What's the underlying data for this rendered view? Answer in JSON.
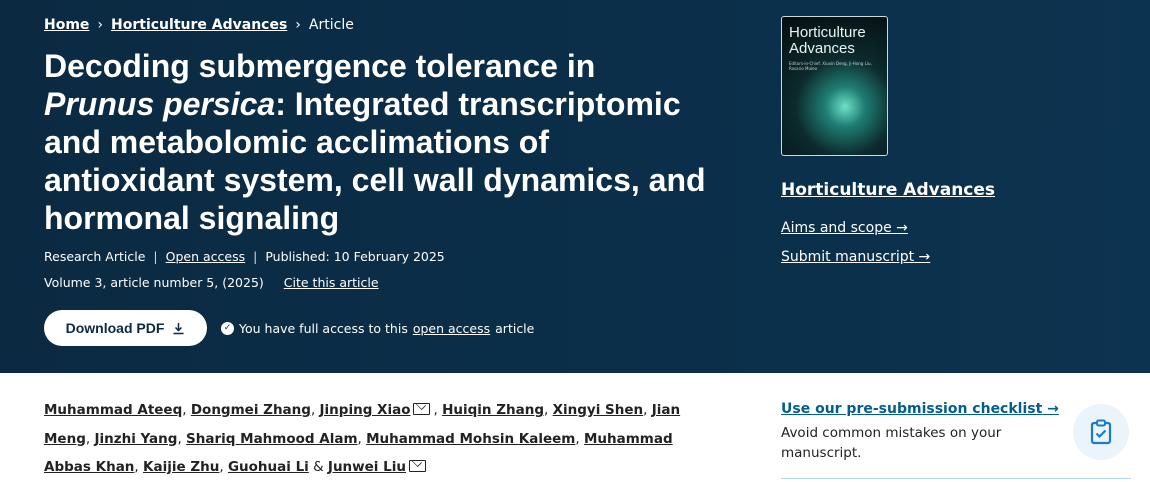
{
  "breadcrumb": [
    {
      "label": "Home"
    },
    {
      "label": "Horticulture Advances"
    },
    {
      "label": "Article"
    }
  ],
  "title": {
    "part1": "Decoding submergence tolerance in ",
    "italic": "Prunus persica",
    "part2": ": Integrated transcriptomic and metabolomic acclimations of antioxidant system, cell wall dynamics, and hormonal signaling"
  },
  "meta": {
    "type": "Research Article",
    "open_access": "Open access",
    "published": "Published: 10 February 2025",
    "volume": "Volume 3, article number 5, (2025)",
    "cite": "Cite this article"
  },
  "download": {
    "label": "Download PDF",
    "icon": "download-icon"
  },
  "access": {
    "prefix": "You have full access to this",
    "link": "open access",
    "suffix": "article"
  },
  "journal": {
    "cover_title": "Horticulture Advances",
    "cover_editors": "Editors-in-Chief: Xiuxin Deng, Ji-Hong Liu, Rosario Muleo",
    "name": "Horticulture Advances",
    "aims": "Aims and scope",
    "submit": "Submit manuscript"
  },
  "authors": [
    "Muhammad Ateeq",
    "Dongmei Zhang",
    "Jinping Xiao",
    "Huiqin Zhang",
    "Xingyi Shen",
    "Jian Meng",
    "Jinzhi Yang",
    "Shariq Mahmood Alam",
    "Muhammad Mohsin Kaleem",
    "Muhammad Abbas Khan",
    "Kaijie Zhu",
    "Guohuai Li",
    "Junwei Liu"
  ],
  "checklist": {
    "link": "Use our pre-submission checklist",
    "desc": "Avoid common mistakes on your manuscript.",
    "icon": "clipboard-check-icon"
  },
  "colors": {
    "hero_bg": "#0b2a42",
    "link_blue": "#025e8d"
  }
}
